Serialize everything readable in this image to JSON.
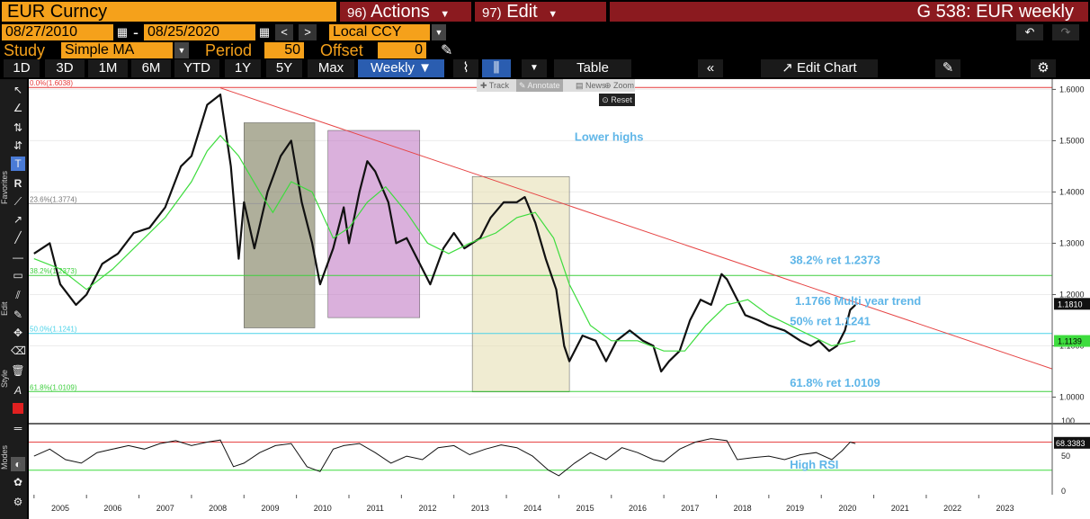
{
  "header": {
    "ticker": "EUR Curncy",
    "actions_num": "96)",
    "actions_label": "Actions",
    "edit_num": "97)",
    "edit_label": "Edit",
    "title": "G 538: EUR weekly"
  },
  "range": {
    "start": "08/27/2010",
    "sep": "-",
    "end": "08/25/2020",
    "currency": "Local CCY"
  },
  "study": {
    "label": "Study",
    "value": "Simple MA",
    "period_label": "Period",
    "period_value": "50",
    "offset_label": "Offset",
    "offset_value": "0"
  },
  "toolbar": {
    "periods": [
      "1D",
      "3D",
      "1M",
      "6M",
      "YTD",
      "1Y",
      "5Y",
      "Max"
    ],
    "frequency": "Weekly ▼",
    "table_label": "Table",
    "edit_chart_label": "Edit Chart"
  },
  "submenu": {
    "track": "Track",
    "annotate": "Annotate",
    "news": "News",
    "zoom": "Zoom",
    "reset": "Reset"
  },
  "side_labels": {
    "favorites": "Favorites",
    "edit": "Edit",
    "style": "Style",
    "modes": "Modes"
  },
  "chart_data": {
    "type": "line",
    "main": {
      "yticks": [
        1.6,
        1.5,
        1.4,
        1.3,
        1.2,
        1.1,
        1.0
      ],
      "ytick_labels": [
        "1.6000",
        "1.5000",
        "1.4000",
        "1.3000",
        "1.2000",
        "1.1000",
        "1.0000"
      ],
      "ylim": [
        0.95,
        1.62
      ],
      "xlim": [
        2004.9,
        2024.4
      ],
      "last_price": "1.1810",
      "last_ma": "1.1139",
      "price": [
        [
          2005.0,
          1.28
        ],
        [
          2005.3,
          1.3
        ],
        [
          2005.5,
          1.22
        ],
        [
          2005.8,
          1.18
        ],
        [
          2006.0,
          1.2
        ],
        [
          2006.3,
          1.26
        ],
        [
          2006.6,
          1.28
        ],
        [
          2006.9,
          1.32
        ],
        [
          2007.2,
          1.33
        ],
        [
          2007.5,
          1.37
        ],
        [
          2007.8,
          1.45
        ],
        [
          2008.0,
          1.47
        ],
        [
          2008.3,
          1.57
        ],
        [
          2008.55,
          1.59
        ],
        [
          2008.75,
          1.45
        ],
        [
          2008.9,
          1.27
        ],
        [
          2009.0,
          1.38
        ],
        [
          2009.2,
          1.29
        ],
        [
          2009.45,
          1.4
        ],
        [
          2009.7,
          1.47
        ],
        [
          2009.9,
          1.5
        ],
        [
          2010.1,
          1.38
        ],
        [
          2010.3,
          1.3
        ],
        [
          2010.45,
          1.22
        ],
        [
          2010.7,
          1.29
        ],
        [
          2010.9,
          1.37
        ],
        [
          2011.0,
          1.3
        ],
        [
          2011.2,
          1.4
        ],
        [
          2011.35,
          1.46
        ],
        [
          2011.5,
          1.44
        ],
        [
          2011.75,
          1.38
        ],
        [
          2011.9,
          1.3
        ],
        [
          2012.1,
          1.31
        ],
        [
          2012.3,
          1.27
        ],
        [
          2012.55,
          1.22
        ],
        [
          2012.8,
          1.29
        ],
        [
          2013.0,
          1.32
        ],
        [
          2013.2,
          1.29
        ],
        [
          2013.5,
          1.31
        ],
        [
          2013.7,
          1.35
        ],
        [
          2013.95,
          1.38
        ],
        [
          2014.2,
          1.38
        ],
        [
          2014.35,
          1.39
        ],
        [
          2014.55,
          1.34
        ],
        [
          2014.75,
          1.27
        ],
        [
          2014.95,
          1.21
        ],
        [
          2015.1,
          1.1
        ],
        [
          2015.2,
          1.07
        ],
        [
          2015.45,
          1.12
        ],
        [
          2015.7,
          1.11
        ],
        [
          2015.9,
          1.07
        ],
        [
          2016.1,
          1.11
        ],
        [
          2016.35,
          1.13
        ],
        [
          2016.6,
          1.11
        ],
        [
          2016.8,
          1.1
        ],
        [
          2016.95,
          1.05
        ],
        [
          2017.1,
          1.07
        ],
        [
          2017.3,
          1.09
        ],
        [
          2017.5,
          1.15
        ],
        [
          2017.7,
          1.19
        ],
        [
          2017.9,
          1.18
        ],
        [
          2018.1,
          1.24
        ],
        [
          2018.2,
          1.23
        ],
        [
          2018.35,
          1.2
        ],
        [
          2018.55,
          1.16
        ],
        [
          2018.8,
          1.15
        ],
        [
          2019.0,
          1.14
        ],
        [
          2019.3,
          1.13
        ],
        [
          2019.6,
          1.11
        ],
        [
          2019.8,
          1.1
        ],
        [
          2019.95,
          1.11
        ],
        [
          2020.15,
          1.09
        ],
        [
          2020.3,
          1.1
        ],
        [
          2020.45,
          1.13
        ],
        [
          2020.55,
          1.17
        ],
        [
          2020.65,
          1.18
        ]
      ],
      "ma": [
        [
          2005.0,
          1.27
        ],
        [
          2005.5,
          1.25
        ],
        [
          2006.0,
          1.21
        ],
        [
          2006.5,
          1.25
        ],
        [
          2007.0,
          1.3
        ],
        [
          2007.5,
          1.35
        ],
        [
          2008.0,
          1.42
        ],
        [
          2008.3,
          1.48
        ],
        [
          2008.55,
          1.51
        ],
        [
          2008.9,
          1.47
        ],
        [
          2009.3,
          1.4
        ],
        [
          2009.55,
          1.36
        ],
        [
          2009.9,
          1.42
        ],
        [
          2010.3,
          1.4
        ],
        [
          2010.7,
          1.31
        ],
        [
          2011.0,
          1.33
        ],
        [
          2011.35,
          1.38
        ],
        [
          2011.7,
          1.41
        ],
        [
          2012.1,
          1.36
        ],
        [
          2012.5,
          1.3
        ],
        [
          2012.9,
          1.28
        ],
        [
          2013.3,
          1.3
        ],
        [
          2013.8,
          1.32
        ],
        [
          2014.2,
          1.35
        ],
        [
          2014.55,
          1.36
        ],
        [
          2014.9,
          1.31
        ],
        [
          2015.2,
          1.22
        ],
        [
          2015.6,
          1.14
        ],
        [
          2016.0,
          1.11
        ],
        [
          2016.5,
          1.11
        ],
        [
          2017.0,
          1.09
        ],
        [
          2017.4,
          1.09
        ],
        [
          2017.8,
          1.14
        ],
        [
          2018.2,
          1.18
        ],
        [
          2018.6,
          1.19
        ],
        [
          2019.0,
          1.16
        ],
        [
          2019.4,
          1.14
        ],
        [
          2019.8,
          1.12
        ],
        [
          2020.2,
          1.1
        ],
        [
          2020.65,
          1.11
        ]
      ],
      "fib_levels": [
        {
          "label": "0.0%(1.6038)",
          "value": 1.6038,
          "color": "#e63a3a"
        },
        {
          "label": "23.6%(1.3774)",
          "value": 1.3774,
          "color": "#9a9a9a"
        },
        {
          "label": "38.2%(1.2373)",
          "value": 1.2373,
          "color": "#3ecf3e"
        },
        {
          "label": "50.0%(1.1241)",
          "value": 1.1241,
          "color": "#4ad2e8"
        },
        {
          "label": "61.8%(1.0109)",
          "value": 1.0109,
          "color": "#3ecf3e"
        }
      ],
      "trendline": {
        "x1": 2008.55,
        "y1": 1.603,
        "x2": 2024.4,
        "y2": 1.055,
        "color": "#e64545"
      },
      "boxes": [
        {
          "x1": 2009.0,
          "x2": 2010.35,
          "y1": 1.535,
          "y2": 1.135,
          "color": "#7a7a58"
        },
        {
          "x1": 2010.6,
          "x2": 2012.35,
          "y1": 1.52,
          "y2": 1.155,
          "color": "#c27bc4"
        },
        {
          "x1": 2013.35,
          "x2": 2015.2,
          "y1": 1.43,
          "y2": 1.01,
          "color": "#e6e0b4"
        }
      ],
      "annotations": [
        {
          "text": "Lower highs",
          "x": 2015.3,
          "y": 1.5
        },
        {
          "text": "38.2% ret 1.2373",
          "x": 2019.4,
          "y": 1.26
        },
        {
          "text": "1.1766 Multi year trend",
          "x": 2019.5,
          "y": 1.18
        },
        {
          "text": "50% ret 1.1241",
          "x": 2019.4,
          "y": 1.14
        },
        {
          "text": "61.8% ret 1.0109",
          "x": 2019.4,
          "y": 1.02
        }
      ]
    },
    "rsi": {
      "ylim": [
        -5,
        95
      ],
      "yticks": [
        100,
        50,
        0
      ],
      "ytick_labels": [
        "100",
        "50",
        "0"
      ],
      "upper": 70,
      "lower": 30,
      "last": "68.3383",
      "label": "High RSI",
      "values": [
        [
          2005.0,
          50
        ],
        [
          2005.3,
          60
        ],
        [
          2005.6,
          45
        ],
        [
          2005.9,
          40
        ],
        [
          2006.2,
          55
        ],
        [
          2006.5,
          60
        ],
        [
          2006.8,
          65
        ],
        [
          2007.1,
          60
        ],
        [
          2007.4,
          68
        ],
        [
          2007.7,
          72
        ],
        [
          2008.0,
          65
        ],
        [
          2008.3,
          70
        ],
        [
          2008.55,
          73
        ],
        [
          2008.8,
          35
        ],
        [
          2009.0,
          40
        ],
        [
          2009.3,
          55
        ],
        [
          2009.6,
          65
        ],
        [
          2009.9,
          68
        ],
        [
          2010.2,
          35
        ],
        [
          2010.45,
          28
        ],
        [
          2010.7,
          60
        ],
        [
          2010.9,
          65
        ],
        [
          2011.2,
          68
        ],
        [
          2011.5,
          55
        ],
        [
          2011.8,
          40
        ],
        [
          2012.1,
          50
        ],
        [
          2012.4,
          45
        ],
        [
          2012.7,
          62
        ],
        [
          2013.0,
          65
        ],
        [
          2013.3,
          52
        ],
        [
          2013.6,
          60
        ],
        [
          2013.9,
          66
        ],
        [
          2014.2,
          62
        ],
        [
          2014.5,
          50
        ],
        [
          2014.8,
          30
        ],
        [
          2015.0,
          22
        ],
        [
          2015.3,
          40
        ],
        [
          2015.6,
          55
        ],
        [
          2015.9,
          45
        ],
        [
          2016.2,
          62
        ],
        [
          2016.5,
          55
        ],
        [
          2016.8,
          45
        ],
        [
          2017.0,
          42
        ],
        [
          2017.3,
          60
        ],
        [
          2017.6,
          70
        ],
        [
          2017.9,
          75
        ],
        [
          2018.2,
          72
        ],
        [
          2018.4,
          45
        ],
        [
          2018.7,
          48
        ],
        [
          2019.0,
          50
        ],
        [
          2019.3,
          45
        ],
        [
          2019.6,
          52
        ],
        [
          2019.9,
          55
        ],
        [
          2020.2,
          45
        ],
        [
          2020.4,
          58
        ],
        [
          2020.55,
          70
        ],
        [
          2020.65,
          68
        ]
      ]
    },
    "xaxis": {
      "years": [
        "2005",
        "2006",
        "2007",
        "2008",
        "2009",
        "2010",
        "2011",
        "2012",
        "2013",
        "2014",
        "2015",
        "2016",
        "2017",
        "2018",
        "2019",
        "2020",
        "2021",
        "2022",
        "2023"
      ]
    }
  }
}
